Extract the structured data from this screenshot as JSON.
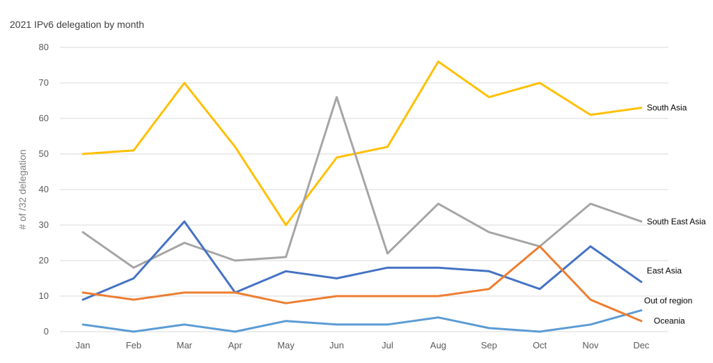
{
  "chart_data": {
    "type": "line",
    "title": "2021 IPv6 delegation by month",
    "xlabel": "",
    "ylabel": "# of /32 delegation",
    "ylim": [
      0,
      80
    ],
    "yticks": [
      0,
      10,
      20,
      30,
      40,
      50,
      60,
      70,
      80
    ],
    "grid": true,
    "legend": "inline-right",
    "categories": [
      "Jan",
      "Feb",
      "Mar",
      "Apr",
      "May",
      "Jun",
      "Jul",
      "Aug",
      "Sep",
      "Oct",
      "Nov",
      "Dec"
    ],
    "series": [
      {
        "name": "South Asia",
        "color": "#FFC000",
        "values": [
          50,
          51,
          70,
          52,
          30,
          49,
          52,
          76,
          66,
          70,
          61,
          63
        ]
      },
      {
        "name": "South East Asia",
        "color": "#A5A5A5",
        "values": [
          28,
          18,
          25,
          20,
          21,
          66,
          22,
          36,
          28,
          24,
          36,
          31
        ]
      },
      {
        "name": "East Asia",
        "color": "#4472C4",
        "values": [
          9,
          15,
          31,
          11,
          17,
          15,
          18,
          18,
          17,
          12,
          24,
          14
        ]
      },
      {
        "name": "Out of region",
        "color": "#5B9BD5",
        "values": [
          2,
          0,
          2,
          0,
          3,
          2,
          2,
          4,
          1,
          0,
          2,
          6
        ]
      },
      {
        "name": "Oceania",
        "color": "#ED7D31",
        "values": [
          11,
          9,
          11,
          11,
          8,
          10,
          10,
          10,
          12,
          24,
          9,
          3
        ]
      }
    ]
  }
}
